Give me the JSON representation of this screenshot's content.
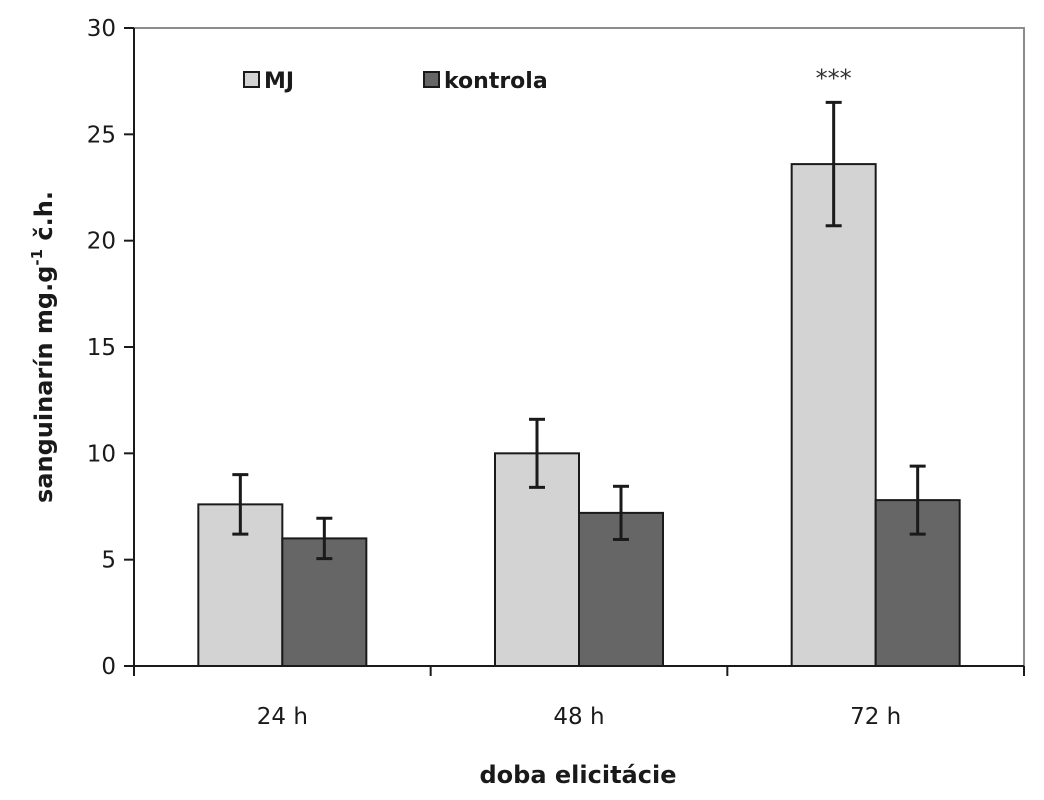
{
  "chart_data": {
    "type": "bar",
    "categories": [
      "24 h",
      "48  h",
      "72 h"
    ],
    "series": [
      {
        "name": "MJ",
        "values": [
          7.6,
          10.0,
          23.6
        ],
        "errors": [
          1.4,
          1.6,
          2.9
        ],
        "color": "#d3d3d3"
      },
      {
        "name": "kontrola",
        "values": [
          6.0,
          7.2,
          7.8
        ],
        "errors": [
          0.95,
          1.25,
          1.6
        ],
        "color": "#666666"
      }
    ],
    "xlabel": "doba elicitácie",
    "ylabel": "sanguinarín  mg.g",
    "ylabel_sup": "-1",
    "ylabel_suffix": " č.h.",
    "ylim": [
      0,
      30
    ],
    "yticks": [
      0,
      5,
      10,
      15,
      20,
      25,
      30
    ],
    "grid": false,
    "legend_position": "top-left",
    "annotations": [
      {
        "category_index": 2,
        "series_index": 0,
        "text": "***"
      }
    ]
  }
}
